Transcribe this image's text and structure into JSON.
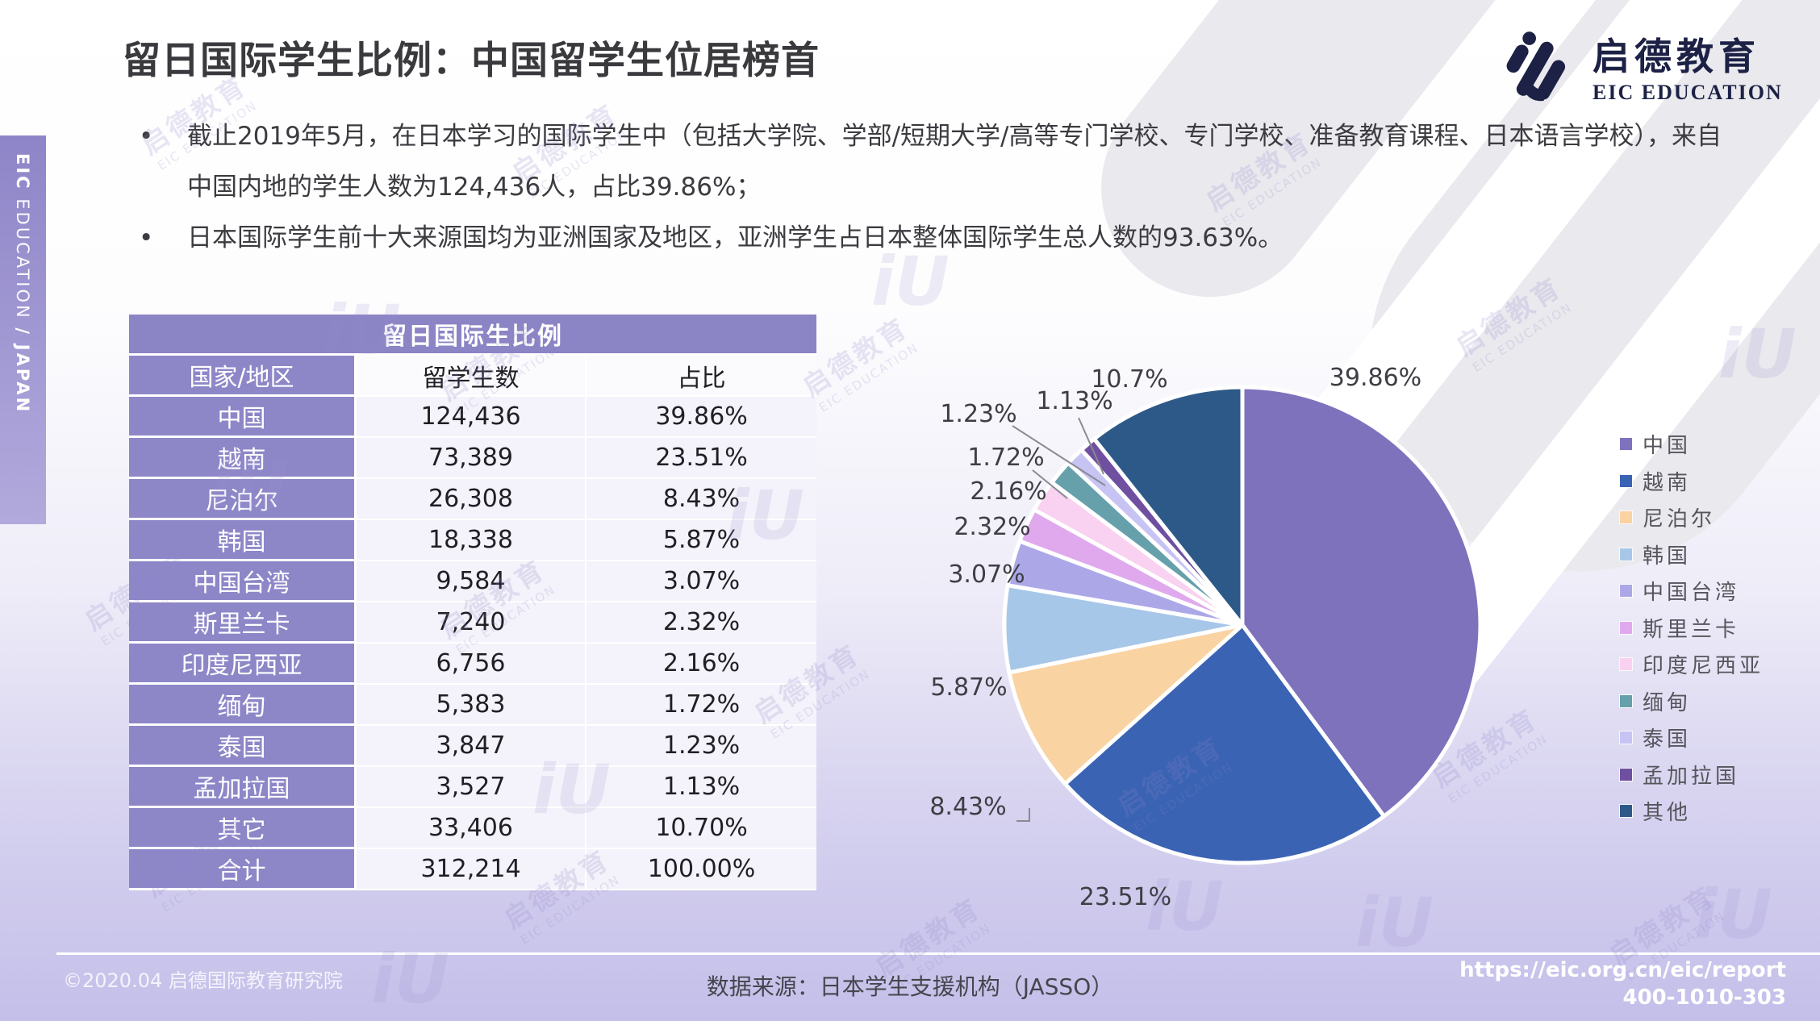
{
  "slide": {
    "title": "留日国际学生比例：中国留学生位居榜首",
    "bullets": [
      "截止2019年5月，在日本学习的国际学生中（包括大学院、学部/短期大学/高等专门学校、专门学校、准备教育课程、日本语言学校），来自中国内地的学生人数为124,436人，占比39.86%；",
      "日本国际学生前十大来源国均为亚洲国家及地区，亚洲学生占日本整体国际学生总人数的93.63%。"
    ],
    "sidebar": {
      "bold1": "EIC",
      "regular": "EDUCATION",
      "sep": "/",
      "bold2": "JAPAN"
    }
  },
  "logo": {
    "cn": "启德教育",
    "en": "EIC EDUCATION"
  },
  "table": {
    "title": "留日国际生比例",
    "columns": [
      "国家/地区",
      "留学生数",
      "占比"
    ],
    "rows": [
      [
        "中国",
        "124,436",
        "39.86%"
      ],
      [
        "越南",
        "73,389",
        "23.51%"
      ],
      [
        "尼泊尔",
        "26,308",
        "8.43%"
      ],
      [
        "韩国",
        "18,338",
        "5.87%"
      ],
      [
        "中国台湾",
        "9,584",
        "3.07%"
      ],
      [
        "斯里兰卡",
        "7,240",
        "2.32%"
      ],
      [
        "印度尼西亚",
        "6,756",
        "2.16%"
      ],
      [
        "缅甸",
        "5,383",
        "1.72%"
      ],
      [
        "泰国",
        "3,847",
        "1.23%"
      ],
      [
        "孟加拉国",
        "3,527",
        "1.13%"
      ],
      [
        "其它",
        "33,406",
        "10.70%"
      ]
    ],
    "total_row": [
      "合计",
      "312,214",
      "100.00%"
    ]
  },
  "chart_data": {
    "type": "pie",
    "title": "留日国际生比例",
    "legend_position": "right",
    "start_angle": "12-o-clock-clockwise",
    "slices": [
      {
        "label": "中国",
        "value_pct": 39.86,
        "display": "39.86%",
        "color": "#7E72BD"
      },
      {
        "label": "越南",
        "value_pct": 23.51,
        "display": "23.51%",
        "color": "#3A63B3"
      },
      {
        "label": "尼泊尔",
        "value_pct": 8.43,
        "display": "8.43%",
        "color": "#FAD3A3"
      },
      {
        "label": "韩国",
        "value_pct": 5.87,
        "display": "5.87%",
        "color": "#A7C7E8"
      },
      {
        "label": "中国台湾",
        "value_pct": 3.07,
        "display": "3.07%",
        "color": "#ACA8E8"
      },
      {
        "label": "斯里兰卡",
        "value_pct": 2.32,
        "display": "2.32%",
        "color": "#E0A9EE"
      },
      {
        "label": "印度尼西亚",
        "value_pct": 2.16,
        "display": "2.16%",
        "color": "#F8D2F0"
      },
      {
        "label": "缅甸",
        "value_pct": 1.72,
        "display": "1.72%",
        "color": "#66A0AB"
      },
      {
        "label": "泰国",
        "value_pct": 1.23,
        "display": "1.23%",
        "color": "#C7C4F4"
      },
      {
        "label": "孟加拉国",
        "value_pct": 1.13,
        "display": "1.13%",
        "color": "#6F4F9F"
      },
      {
        "label": "其他",
        "value_pct": 10.7,
        "display": "10.7%",
        "color": "#2D5988"
      }
    ]
  },
  "footer": {
    "copyright": "©2020.04 启德国际教育研究院",
    "source": "数据来源：日本学生支援机构（JASSO）",
    "url": "https://eic.org.cn/eic/report",
    "phone": "400-1010-303"
  },
  "watermark": {
    "cn": "启德教育",
    "en": "EIC EDUCATION",
    "glyph": "iU"
  }
}
